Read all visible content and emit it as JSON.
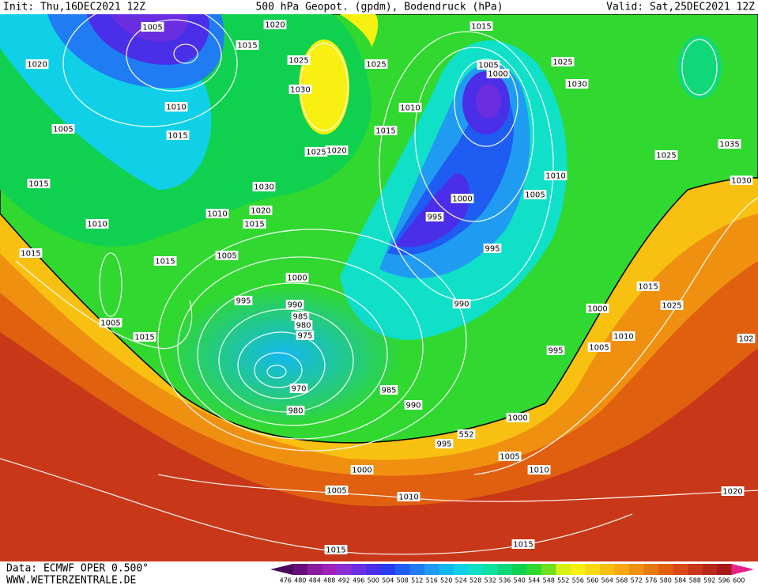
{
  "header": {
    "init": "Init: Thu,16DEC2021 12Z",
    "title": "500 hPa Geopot. (gpdm), Bodendruck (hPa)",
    "valid": "Valid: Sat,25DEC2021 12Z"
  },
  "isobar_labels": [
    "1005",
    "1020",
    "1015",
    "1015",
    "1020",
    "1025",
    "1025",
    "1005",
    "1000",
    "1025",
    "1030",
    "1030",
    "1010",
    "1010",
    "1005",
    "1015",
    "1015",
    "1035",
    "1025",
    "1020",
    "1025",
    "1015",
    "1030",
    "1010",
    "1030",
    "1005",
    "1000",
    "1010",
    "1020",
    "1015",
    "995",
    "1010",
    "1015",
    "1015",
    "1005",
    "995",
    "1000",
    "995",
    "990",
    "990",
    "1015",
    "1025",
    "985",
    "980",
    "1000",
    "975",
    "1005",
    "1015",
    "1010",
    "1005",
    "995",
    "102",
    "970",
    "985",
    "980",
    "990",
    "1000",
    "552",
    "995",
    "1005",
    "1000",
    "1010",
    "1005",
    "1010",
    "1020",
    "1015",
    "1015"
  ],
  "footer": {
    "source": "Data: ECMWF OPER 0.500°",
    "site": "WWW.WETTERZENTRALE.DE"
  },
  "colorbar": {
    "labels": [
      476,
      480,
      484,
      488,
      492,
      496,
      500,
      504,
      508,
      512,
      516,
      520,
      524,
      528,
      532,
      536,
      540,
      544,
      548,
      552,
      556,
      560,
      564,
      568,
      572,
      576,
      580,
      584,
      588,
      592,
      596,
      600
    ],
    "colors": [
      "#4a0a5a",
      "#6a0d7c",
      "#8a1a9e",
      "#a020b8",
      "#8a2ed0",
      "#6a2ee0",
      "#4a2ee8",
      "#2a3cf0",
      "#1f5cf2",
      "#1f7cf2",
      "#1f9cf2",
      "#12b8f0",
      "#10d0e8",
      "#10e0c8",
      "#10e0a0",
      "#10d878",
      "#10d050",
      "#30d830",
      "#70e020",
      "#d8f010",
      "#f8f010",
      "#f8d810",
      "#f8c010",
      "#f8a810",
      "#f09010",
      "#e87810",
      "#e06010",
      "#d84818",
      "#c83818",
      "#b82818",
      "#a81818",
      "#e8208a"
    ]
  }
}
